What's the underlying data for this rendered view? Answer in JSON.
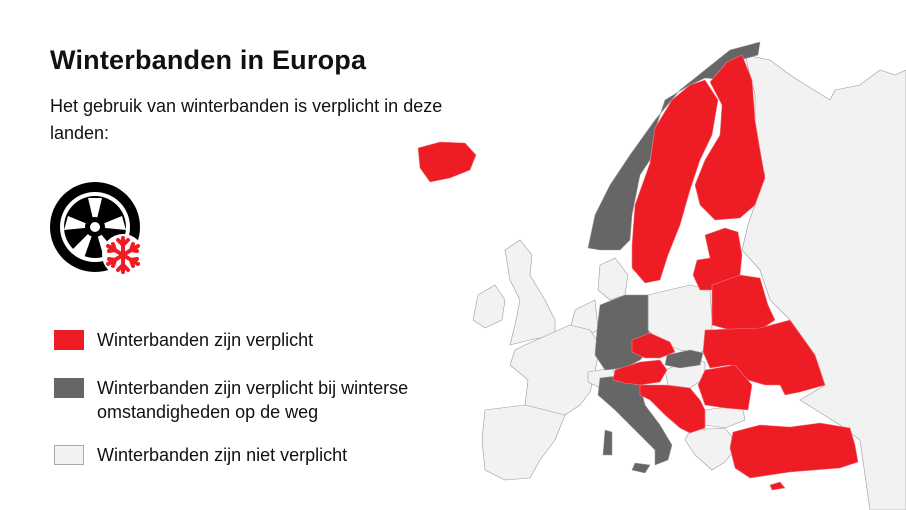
{
  "header": {
    "title": "Winterbanden in Europa",
    "subtitle": "Het gebruik van winterbanden is verplicht in deze landen:"
  },
  "icon": {
    "name": "winter-tire-snowflake-icon"
  },
  "colors": {
    "mandatory": "#ee1c25",
    "conditional": "#666666",
    "not_mandatory": "#f2f2f2",
    "border": "#9a9a9a"
  },
  "legend": [
    {
      "key": "mandatory",
      "label": "Winterbanden zijn verplicht",
      "color": "#ee1c25"
    },
    {
      "key": "conditional",
      "label": "Winterbanden zijn verplicht bij winterse omstandigheden op de weg",
      "color": "#666666"
    },
    {
      "key": "not_mandatory",
      "label": "Winterbanden zijn niet verplicht",
      "color": "#f2f2f2"
    }
  ]
}
